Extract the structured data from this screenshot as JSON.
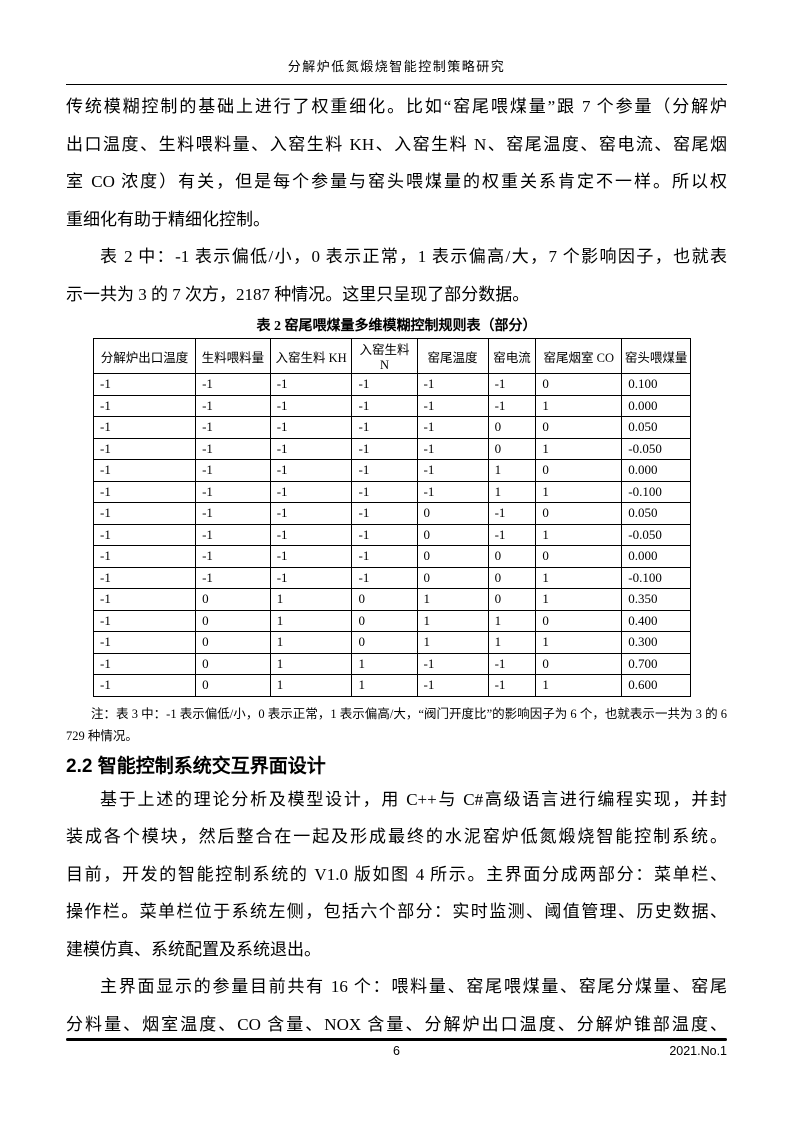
{
  "header": {
    "title": "分解炉低氮煅烧智能控制策略研究"
  },
  "footer": {
    "page_number": "6",
    "issue": "2021.No.1"
  },
  "content": {
    "para_opening": {
      "lines": [
        "传统模糊控制的基础上进行了权重细化。比如“窑尾喂煤量”跟 7 个参量（分解炉",
        "出口温度、生料喂料量、入窑生料 KH、入窑生料 N、窑尾温度、窑电流、窑尾烟",
        "室 CO 浓度）有关，但是每个参量与窑头喂煤量的权重关系肯定不一样。所以权",
        "重细化有助于精细化控制。"
      ]
    },
    "para_intro": {
      "lines": [
        "表 2 中：-1 表示偏低/小，0 表示正常，1 表示偏高/大，7 个影响因子，也就表",
        "示一共为 3 的 7 次方，2187 种情况。这里只呈现了部分数据。"
      ]
    },
    "table_caption": "表 2 窑尾喂煤量多维模糊控制规则表（部分）",
    "table": {
      "headers": [
        "分解炉出口温度",
        "生料喂料量",
        "入窑生料 KH",
        "入窑生料 N",
        "窑尾温度",
        "窑电流",
        "窑尾烟室 CO",
        "窑头喂煤量"
      ],
      "rows": [
        [
          "-1",
          "-1",
          "-1",
          "-1",
          "-1",
          "-1",
          "0",
          "0.100"
        ],
        [
          "-1",
          "-1",
          "-1",
          "-1",
          "-1",
          "-1",
          "1",
          "0.000"
        ],
        [
          "-1",
          "-1",
          "-1",
          "-1",
          "-1",
          "0",
          "0",
          "0.050"
        ],
        [
          "-1",
          "-1",
          "-1",
          "-1",
          "-1",
          "0",
          "1",
          "-0.050"
        ],
        [
          "-1",
          "-1",
          "-1",
          "-1",
          "-1",
          "1",
          "0",
          "0.000"
        ],
        [
          "-1",
          "-1",
          "-1",
          "-1",
          "-1",
          "1",
          "1",
          "-0.100"
        ],
        [
          "-1",
          "-1",
          "-1",
          "-1",
          "0",
          "-1",
          "0",
          "0.050"
        ],
        [
          "-1",
          "-1",
          "-1",
          "-1",
          "0",
          "-1",
          "1",
          "-0.050"
        ],
        [
          "-1",
          "-1",
          "-1",
          "-1",
          "0",
          "0",
          "0",
          "0.000"
        ],
        [
          "-1",
          "-1",
          "-1",
          "-1",
          "0",
          "0",
          "1",
          "-0.100"
        ],
        [
          "-1",
          "0",
          "1",
          "0",
          "1",
          "0",
          "1",
          "0.350"
        ],
        [
          "-1",
          "0",
          "1",
          "0",
          "1",
          "1",
          "0",
          "0.400"
        ],
        [
          "-1",
          "0",
          "1",
          "0",
          "1",
          "1",
          "1",
          "0.300"
        ],
        [
          "-1",
          "0",
          "1",
          "1",
          "-1",
          "-1",
          "0",
          "0.700"
        ],
        [
          "-1",
          "0",
          "1",
          "1",
          "-1",
          "-1",
          "1",
          "0.600"
        ]
      ]
    },
    "note": {
      "lines": [
        "注：表 3 中：-1 表示偏低/小，0 表示正常，1 表示偏高/大，“阀门开度比”的影响因子为 6 个，也就表示一共为 3 的 6 次方，",
        "729 种情况。"
      ]
    },
    "section_heading": "2.2 智能控制系统交互界面设计",
    "para_system": {
      "lines": [
        "基于上述的理论分析及模型设计，用 C++与 C#高级语言进行编程实现，并封",
        "装成各个模块，然后整合在一起及形成最终的水泥窑炉低氮煅烧智能控制系统。",
        "目前，开发的智能控制系统的 V1.0 版如图 4 所示。主界面分成两部分：菜单栏、",
        "操作栏。菜单栏位于系统左侧，包括六个部分：实时监测、阈值管理、历史数据、",
        "建模仿真、系统配置及系统退出。"
      ]
    },
    "para_params": {
      "lines": [
        "主界面显示的参量目前共有 16 个：喂料量、窑尾喂煤量、窑尾分煤量、窑尾",
        "分料量、烟室温度、CO 含量、NOX 含量、分解炉出口温度、分解炉锥部温度、"
      ]
    }
  }
}
